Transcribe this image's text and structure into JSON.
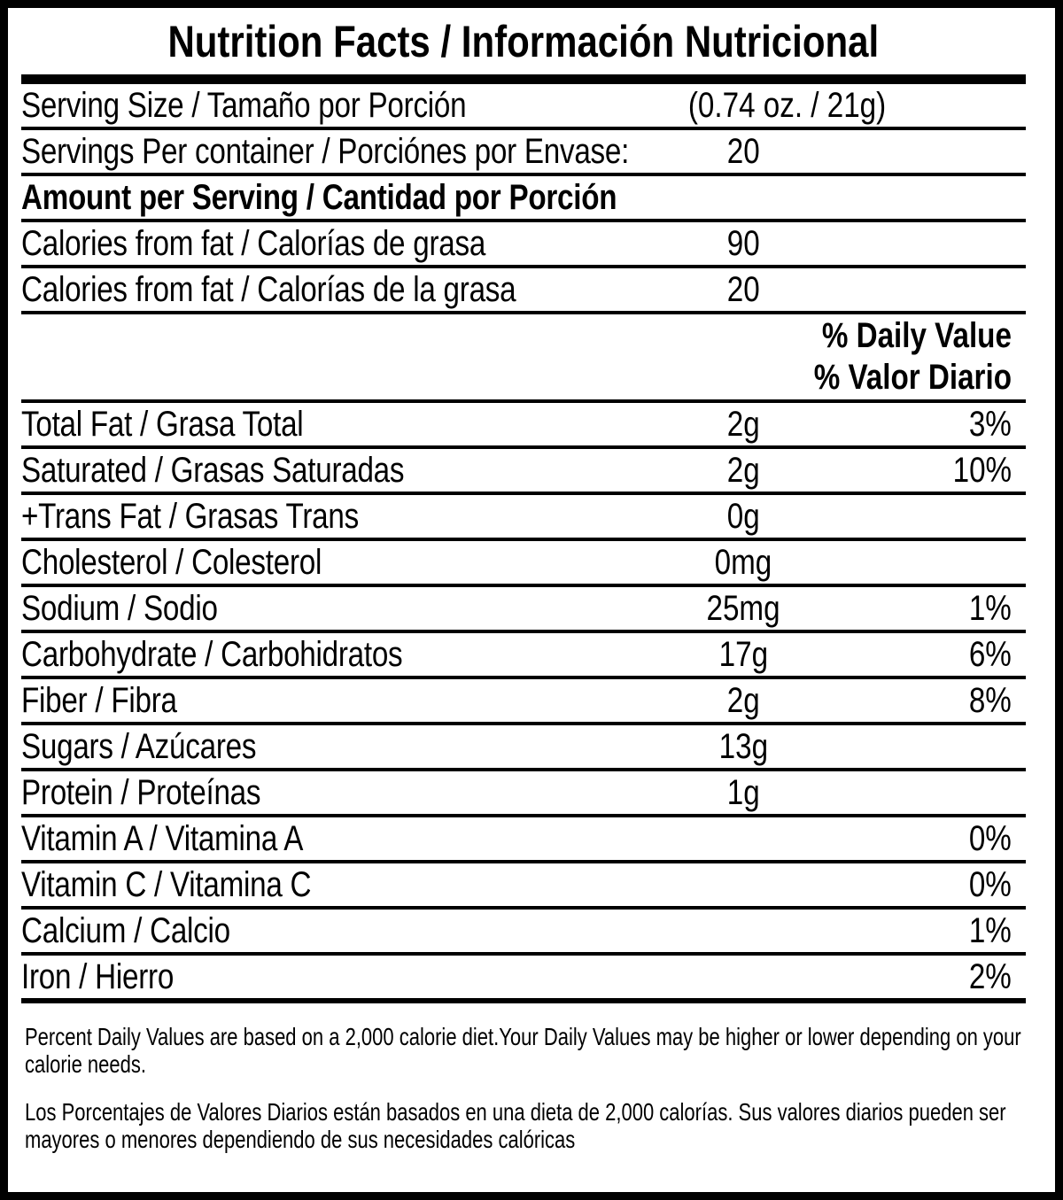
{
  "label": {
    "title": "Nutrition Facts / Información Nutricional",
    "daily_value_header": {
      "en": "% Daily Value",
      "es": "% Valor Diario"
    },
    "rows": [
      {
        "label": "Serving Size / Tamaño por Porción",
        "amount": "(0.74 oz. / 21g)",
        "percent": ""
      },
      {
        "label": "Servings Per container / Porciónes por Envase:",
        "amount": "20",
        "percent": ""
      },
      {
        "label": "Amount per Serving / Cantidad por Porción",
        "amount": "",
        "percent": ""
      },
      {
        "label": "Calories from fat / Calorías de grasa",
        "amount": "90",
        "percent": ""
      },
      {
        "label": "Calories from fat / Calorías de la grasa",
        "amount": "20",
        "percent": ""
      },
      {
        "label": "Total Fat / Grasa Total",
        "amount": "2g",
        "percent": "3%"
      },
      {
        "label": "Saturated / Grasas Saturadas",
        "amount": "2g",
        "percent": "10%"
      },
      {
        "label": "+Trans Fat / Grasas Trans",
        "amount": "0g",
        "percent": ""
      },
      {
        "label": "Cholesterol / Colesterol",
        "amount": "0mg",
        "percent": ""
      },
      {
        "label": "Sodium / Sodio",
        "amount": "25mg",
        "percent": "1%"
      },
      {
        "label": "Carbohydrate / Carbohidratos",
        "amount": "17g",
        "percent": "6%"
      },
      {
        "label": "Fiber / Fibra",
        "amount": "2g",
        "percent": "8%"
      },
      {
        "label": "Sugars / Azúcares",
        "amount": "13g",
        "percent": ""
      },
      {
        "label": "Protein / Proteínas",
        "amount": "1g",
        "percent": ""
      },
      {
        "label": "Vitamin A / Vitamina A",
        "amount": "",
        "percent": "0%"
      },
      {
        "label": "Vitamin C / Vitamina C",
        "amount": "",
        "percent": "0%"
      },
      {
        "label": "Calcium / Calcio",
        "amount": "",
        "percent": "1%"
      },
      {
        "label": "Iron / Hierro",
        "amount": "",
        "percent": "2%"
      }
    ],
    "footnotes": {
      "en": "Percent Daily Values are based on a 2,000 calorie diet.Your Daily Values may be higher or lower depending on your calorie needs.",
      "es": "Los Porcentajes de Valores Diarios están basados en una dieta de 2,000 calorías. Sus valores diarios pueden ser mayores o menores dependiendo de sus necesidades calóricas"
    }
  }
}
